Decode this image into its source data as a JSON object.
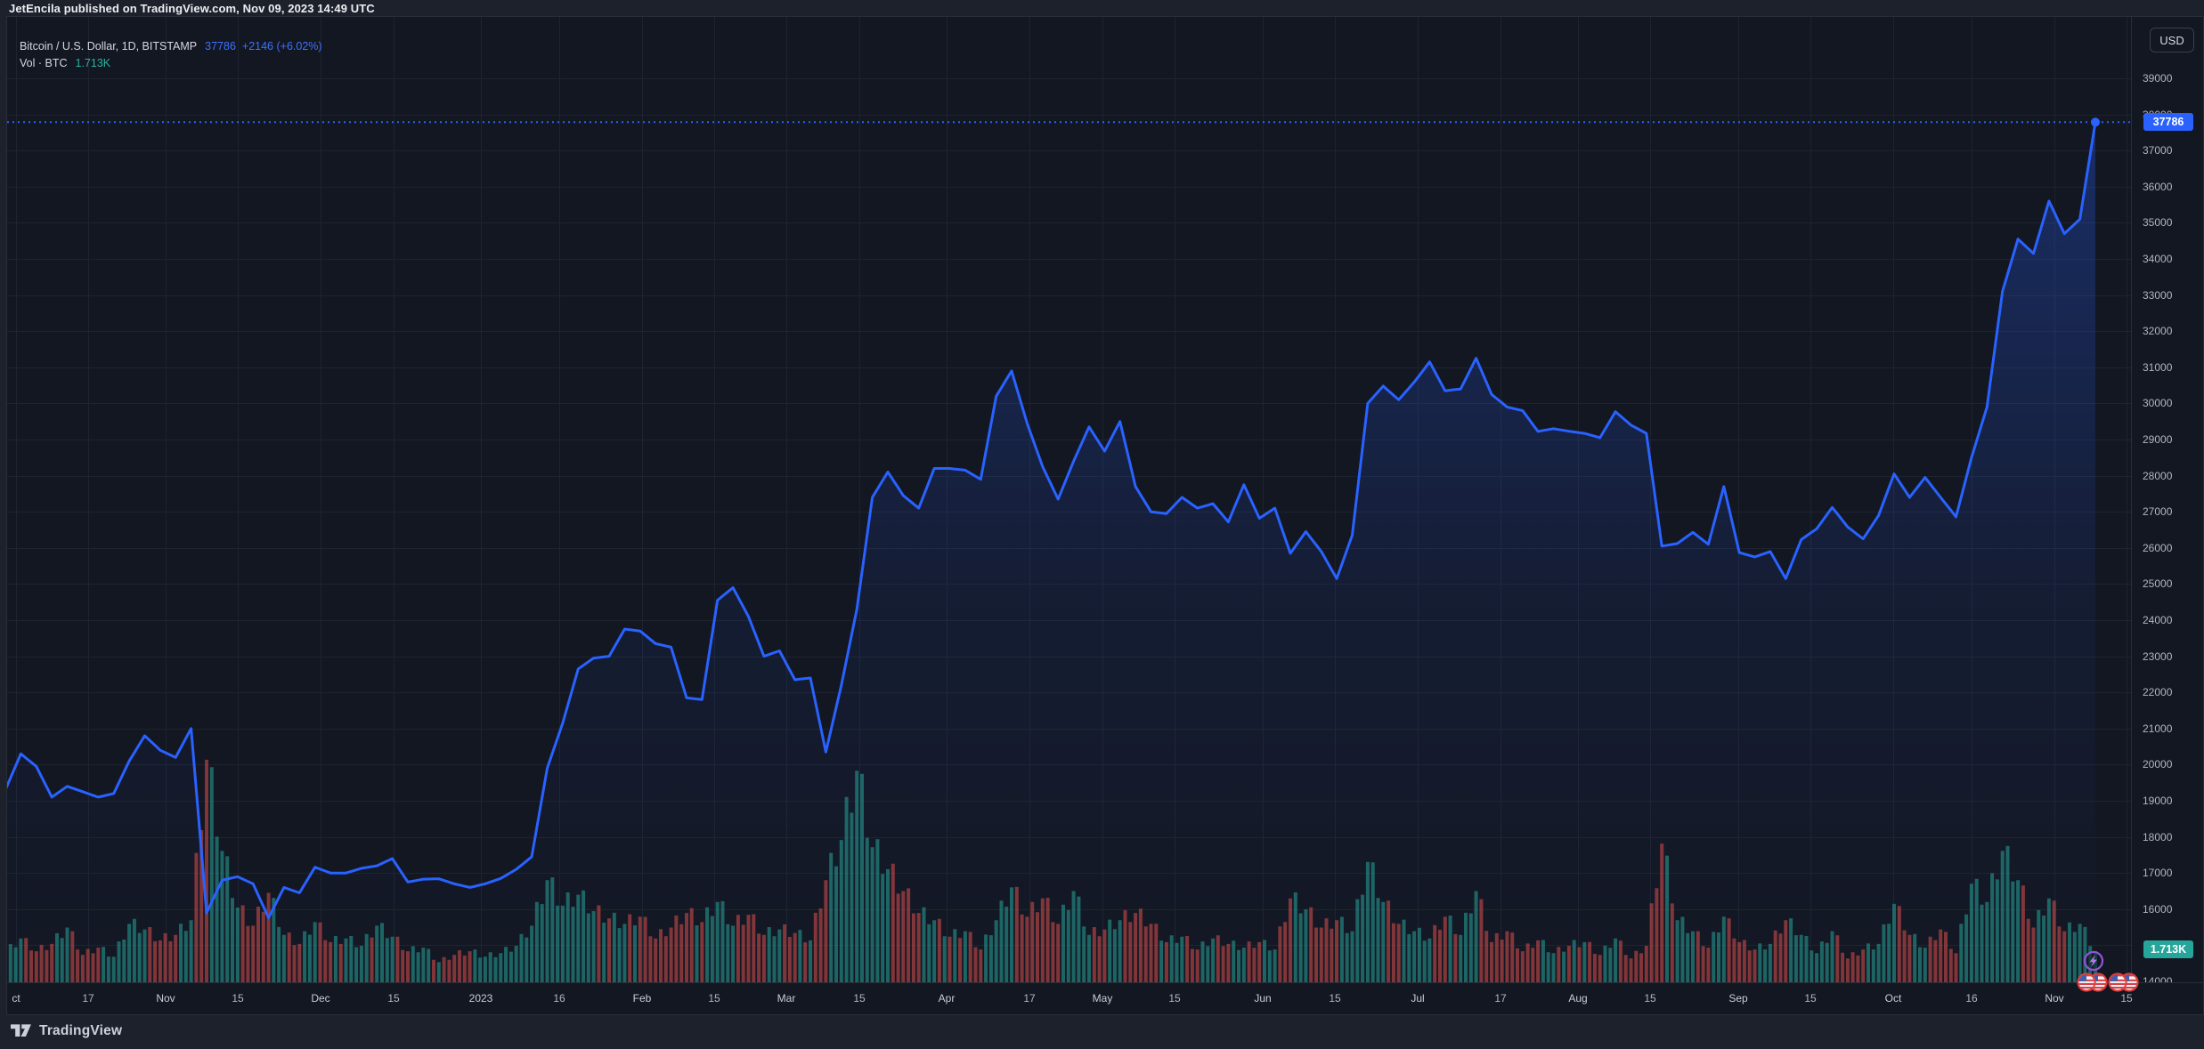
{
  "header": {
    "title": "JetEncila published on TradingView.com, Nov 09, 2023 14:49 UTC"
  },
  "legend": {
    "symbol": "Bitcoin / U.S. Dollar, 1D, BITSTAMP",
    "price": "37786",
    "change": "+2146 (+6.02%)",
    "volume_label": "Vol · BTC",
    "volume_value": "1.713K"
  },
  "price_axis": {
    "currency_button": "USD",
    "labels": [
      "39000",
      "38000",
      "37000",
      "36000",
      "35000",
      "34000",
      "33000",
      "32000",
      "31000",
      "30000",
      "29000",
      "28000",
      "27000",
      "26000",
      "25000",
      "24000",
      "23000",
      "22000",
      "21000",
      "20000",
      "19000",
      "18000",
      "17000",
      "16000",
      "15000",
      "14000"
    ],
    "current_price_badge": "37786",
    "current_volume_badge": "1.713K"
  },
  "time_axis": {
    "ticks": [
      {
        "d": 2,
        "t": "ct",
        "major": true
      },
      {
        "d": 16,
        "t": "17",
        "major": false
      },
      {
        "d": 31,
        "t": "Nov",
        "major": true
      },
      {
        "d": 45,
        "t": "15",
        "major": false
      },
      {
        "d": 61,
        "t": "Dec",
        "major": true
      },
      {
        "d": 75,
        "t": "15",
        "major": false
      },
      {
        "d": 92,
        "t": "2023",
        "major": true
      },
      {
        "d": 107,
        "t": "16",
        "major": false
      },
      {
        "d": 123,
        "t": "Feb",
        "major": true
      },
      {
        "d": 137,
        "t": "15",
        "major": false
      },
      {
        "d": 151,
        "t": "Mar",
        "major": true
      },
      {
        "d": 165,
        "t": "15",
        "major": false
      },
      {
        "d": 182,
        "t": "Apr",
        "major": true
      },
      {
        "d": 198,
        "t": "17",
        "major": false
      },
      {
        "d": 212,
        "t": "May",
        "major": true
      },
      {
        "d": 226,
        "t": "15",
        "major": false
      },
      {
        "d": 243,
        "t": "Jun",
        "major": true
      },
      {
        "d": 257,
        "t": "15",
        "major": false
      },
      {
        "d": 273,
        "t": "Jul",
        "major": true
      },
      {
        "d": 289,
        "t": "17",
        "major": false
      },
      {
        "d": 304,
        "t": "Aug",
        "major": true
      },
      {
        "d": 318,
        "t": "15",
        "major": false
      },
      {
        "d": 335,
        "t": "Sep",
        "major": true
      },
      {
        "d": 349,
        "t": "15",
        "major": false
      },
      {
        "d": 365,
        "t": "Oct",
        "major": true
      },
      {
        "d": 380,
        "t": "16",
        "major": false
      },
      {
        "d": 396,
        "t": "Nov",
        "major": true
      },
      {
        "d": 410,
        "t": "15",
        "major": false
      }
    ]
  },
  "footer": {
    "brand": "TradingView"
  },
  "colors": {
    "background": "#1d212c",
    "pane": "#131722",
    "border": "#2a2e39",
    "grid": "#1e2330",
    "line": "#2962ff",
    "area_top": "rgba(41,98,255,0.30)",
    "area_mid": "rgba(41,98,255,0.08)",
    "area_bottom": "rgba(41,98,255,0.0)",
    "vol_up": "rgba(38,166,154,0.55)",
    "vol_down": "rgba(239,83,80,0.50)",
    "axis_text": "#b2b5be",
    "price_badge_bg": "#2962ff",
    "vol_badge_bg": "#26a69a",
    "dotted_line": "#2962ff"
  },
  "chart_data": {
    "type": "area",
    "title": "Bitcoin / U.S. Dollar, 1D, BITSTAMP",
    "ylabel": "USD",
    "ylim": [
      14000,
      39400
    ],
    "x_start": "2022-10-01",
    "x_end": "2023-11-09",
    "sample_interval_days": 3,
    "grid": true,
    "legend_position": "top-left",
    "current": {
      "price": 37786,
      "change": "+2146",
      "change_pct": "+6.02%",
      "volume_btc": "1.713K"
    },
    "prices": [
      19300,
      20300,
      19950,
      19100,
      19400,
      19250,
      19100,
      19200,
      20100,
      20800,
      20400,
      20200,
      21000,
      15900,
      16800,
      16900,
      16700,
      15760,
      16600,
      16450,
      17160,
      17000,
      17000,
      17130,
      17200,
      17400,
      16750,
      16830,
      16840,
      16700,
      16600,
      16700,
      16850,
      17100,
      17450,
      19900,
      21150,
      22650,
      22950,
      23000,
      23750,
      23700,
      23350,
      23250,
      21850,
      21800,
      24550,
      24900,
      24100,
      23000,
      23150,
      22350,
      22400,
      20350,
      22200,
      24300,
      27400,
      28100,
      27450,
      27100,
      28200,
      28200,
      28150,
      27900,
      30200,
      30900,
      29450,
      28250,
      27350,
      28400,
      29350,
      28680,
      29500,
      27700,
      27000,
      26950,
      27400,
      27100,
      27225,
      26720,
      27750,
      26820,
      27100,
      25850,
      26450,
      25900,
      25150,
      26350,
      30000,
      30480,
      30100,
      30590,
      31150,
      30350,
      30400,
      31250,
      30250,
      29900,
      29800,
      29225,
      29300,
      29230,
      29170,
      29050,
      29770,
      29400,
      29170,
      26050,
      26120,
      26430,
      26100,
      27700,
      25870,
      25750,
      25900,
      25150,
      26230,
      26530,
      27120,
      26580,
      26250,
      26900,
      28050,
      27400,
      27950,
      27400,
      26860,
      28500,
      29900,
      33100,
      34550,
      34150,
      35600,
      34700,
      35100,
      37786
    ],
    "volumes_kbtc": [
      1.6,
      2.4,
      1.7,
      2.1,
      3.0,
      1.5,
      1.9,
      1.4,
      3.2,
      2.9,
      2.3,
      2.6,
      3.4,
      12.2,
      7.2,
      4.1,
      3.1,
      4.9,
      2.6,
      2.1,
      3.3,
      2.2,
      2.4,
      2.0,
      3.1,
      2.5,
      1.7,
      1.9,
      1.1,
      1.5,
      1.7,
      1.4,
      1.6,
      2.0,
      3.1,
      5.6,
      4.2,
      4.8,
      3.9,
      3.5,
      3.2,
      3.6,
      2.4,
      3.0,
      3.8,
      3.3,
      4.4,
      3.1,
      3.7,
      2.6,
      2.9,
      2.7,
      2.3,
      5.6,
      7.8,
      11.6,
      7.4,
      6.2,
      5.0,
      3.8,
      3.4,
      2.5,
      2.8,
      1.8,
      3.4,
      5.2,
      3.6,
      4.6,
      3.2,
      5.0,
      2.6,
      2.9,
      3.4,
      3.8,
      3.2,
      2.2,
      2.5,
      1.8,
      2.4,
      2.1,
      1.9,
      2.2,
      1.8,
      4.6,
      4.0,
      3.0,
      3.4,
      2.8,
      6.6,
      4.4,
      3.2,
      2.8,
      2.4,
      3.6,
      2.6,
      5.0,
      2.2,
      2.8,
      1.7,
      2.3,
      1.6,
      2.0,
      2.2,
      1.5,
      2.4,
      1.3,
      2.0,
      7.6,
      3.4,
      2.8,
      1.9,
      3.6,
      2.2,
      1.8,
      2.1,
      3.4,
      2.6,
      1.6,
      2.8,
      1.3,
      1.8,
      2.1,
      4.3,
      2.6,
      1.9,
      2.9,
      1.6,
      5.4,
      4.4,
      7.2,
      5.6,
      3.0,
      4.6,
      2.8,
      3.2,
      1.713
    ]
  }
}
